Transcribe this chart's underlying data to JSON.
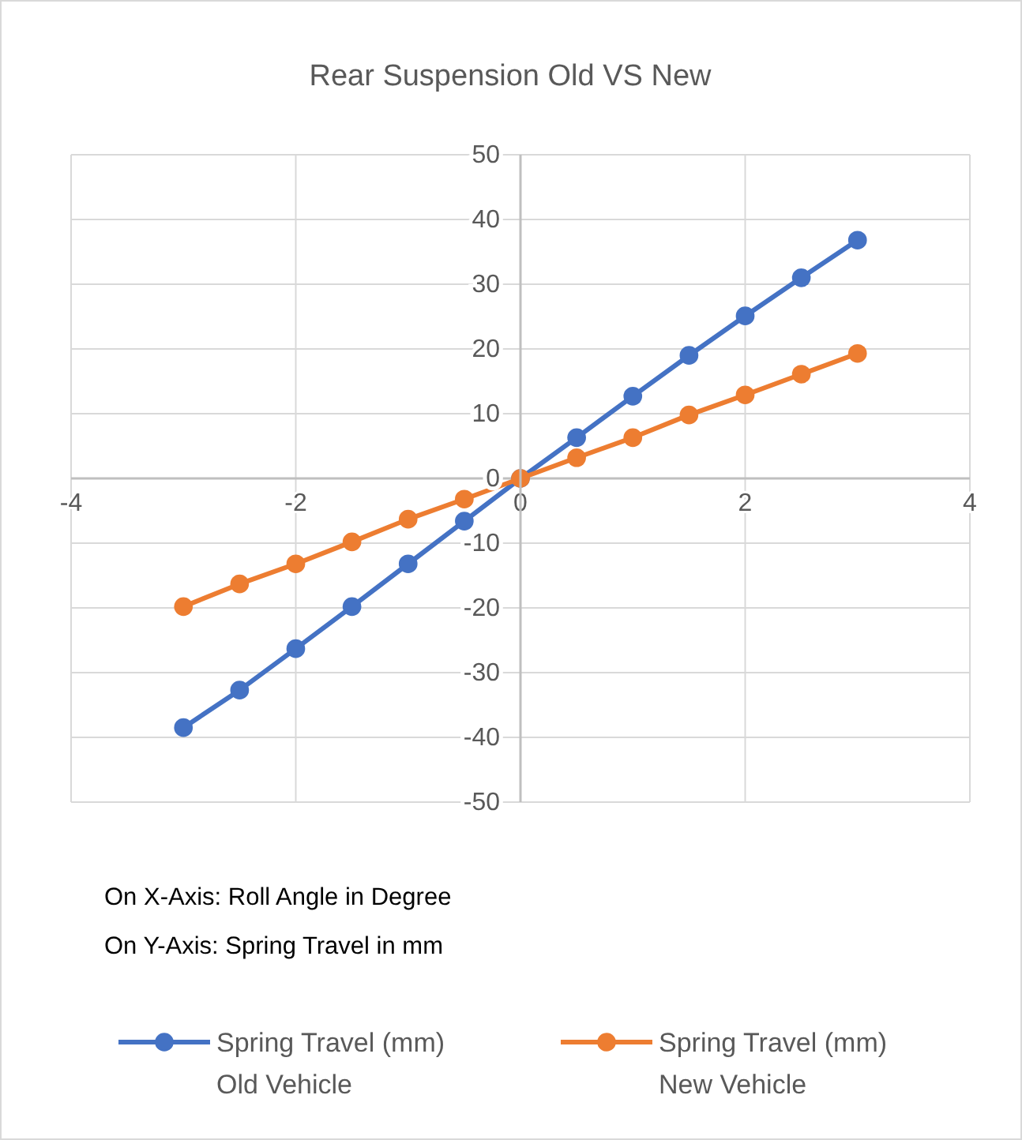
{
  "chart_data": {
    "type": "line",
    "title": "Rear Suspension Old VS New",
    "x": [
      -3,
      -2.5,
      -2,
      -1.5,
      -1,
      -0.5,
      0,
      0.5,
      1,
      1.5,
      2,
      2.5,
      3
    ],
    "series": [
      {
        "name": "Spring Travel (mm) Old Vehicle",
        "color": "#4472c4",
        "values": [
          -38.5,
          -32.7,
          -26.3,
          -19.8,
          -13.2,
          -6.6,
          0,
          6.3,
          12.7,
          19,
          25.1,
          31,
          36.8
        ]
      },
      {
        "name": "Spring Travel (mm) New Vehicle",
        "color": "#ed7d31",
        "values": [
          -19.8,
          -16.3,
          -13.2,
          -9.8,
          -6.3,
          -3.2,
          0,
          3.2,
          6.3,
          9.8,
          12.9,
          16.1,
          19.3
        ]
      }
    ],
    "xlim": [
      -4,
      4
    ],
    "xticks": [
      -4,
      -2,
      0,
      2,
      4
    ],
    "ylim": [
      -50,
      50
    ],
    "yticks": [
      -50,
      -40,
      -30,
      -20,
      -10,
      0,
      10,
      20,
      30,
      40,
      50
    ],
    "grid": true,
    "marker": "circle",
    "line_style": "solid",
    "legend": "bottom",
    "annotations": [
      "On X-Axis: Roll Angle in Degree",
      "On Y-Axis: Spring Travel in mm"
    ]
  }
}
